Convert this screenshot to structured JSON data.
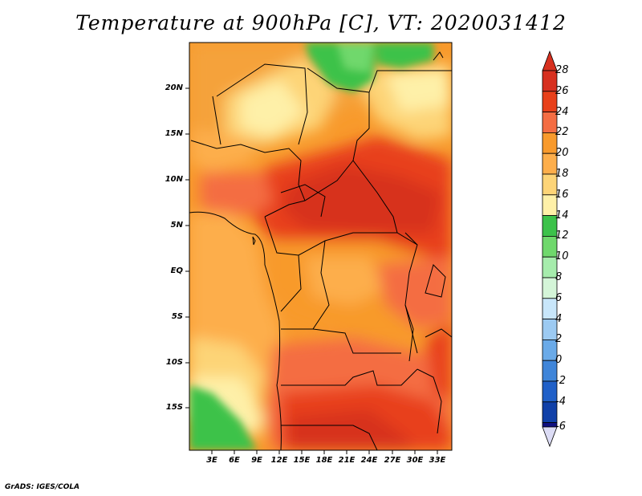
{
  "title": "Temperature at 900hPa [C], VT: 2020031412",
  "credit": "GrADS: IGES/COLA",
  "map": {
    "lat_labels": [
      "20N",
      "15N",
      "10N",
      "5N",
      "EQ",
      "5S",
      "10S",
      "15S"
    ],
    "lon_labels": [
      "3E",
      "6E",
      "9E",
      "12E",
      "15E",
      "18E",
      "21E",
      "24E",
      "27E",
      "30E",
      "33E"
    ],
    "lon_range_deg": [
      0,
      35
    ],
    "lat_range_deg": [
      -20,
      24
    ]
  },
  "colorbar": {
    "labels": [
      "28",
      "26",
      "24",
      "22",
      "20",
      "18",
      "16",
      "14",
      "12",
      "10",
      "8",
      "6",
      "4",
      "2",
      "0",
      "-2",
      "-4",
      "-6"
    ],
    "colors_top_to_bottom": [
      "#d7301f",
      "#e8401a",
      "#f46d43",
      "#f89a2c",
      "#fdae4b",
      "#fdd477",
      "#fef0a8",
      "#3cc24a",
      "#6fd86c",
      "#a6ecac",
      "#d4f5d8",
      "#c8e6fa",
      "#9ccaf2",
      "#6aaae8",
      "#3f85d9",
      "#2060c8",
      "#1040a8",
      "#101080"
    ]
  }
}
